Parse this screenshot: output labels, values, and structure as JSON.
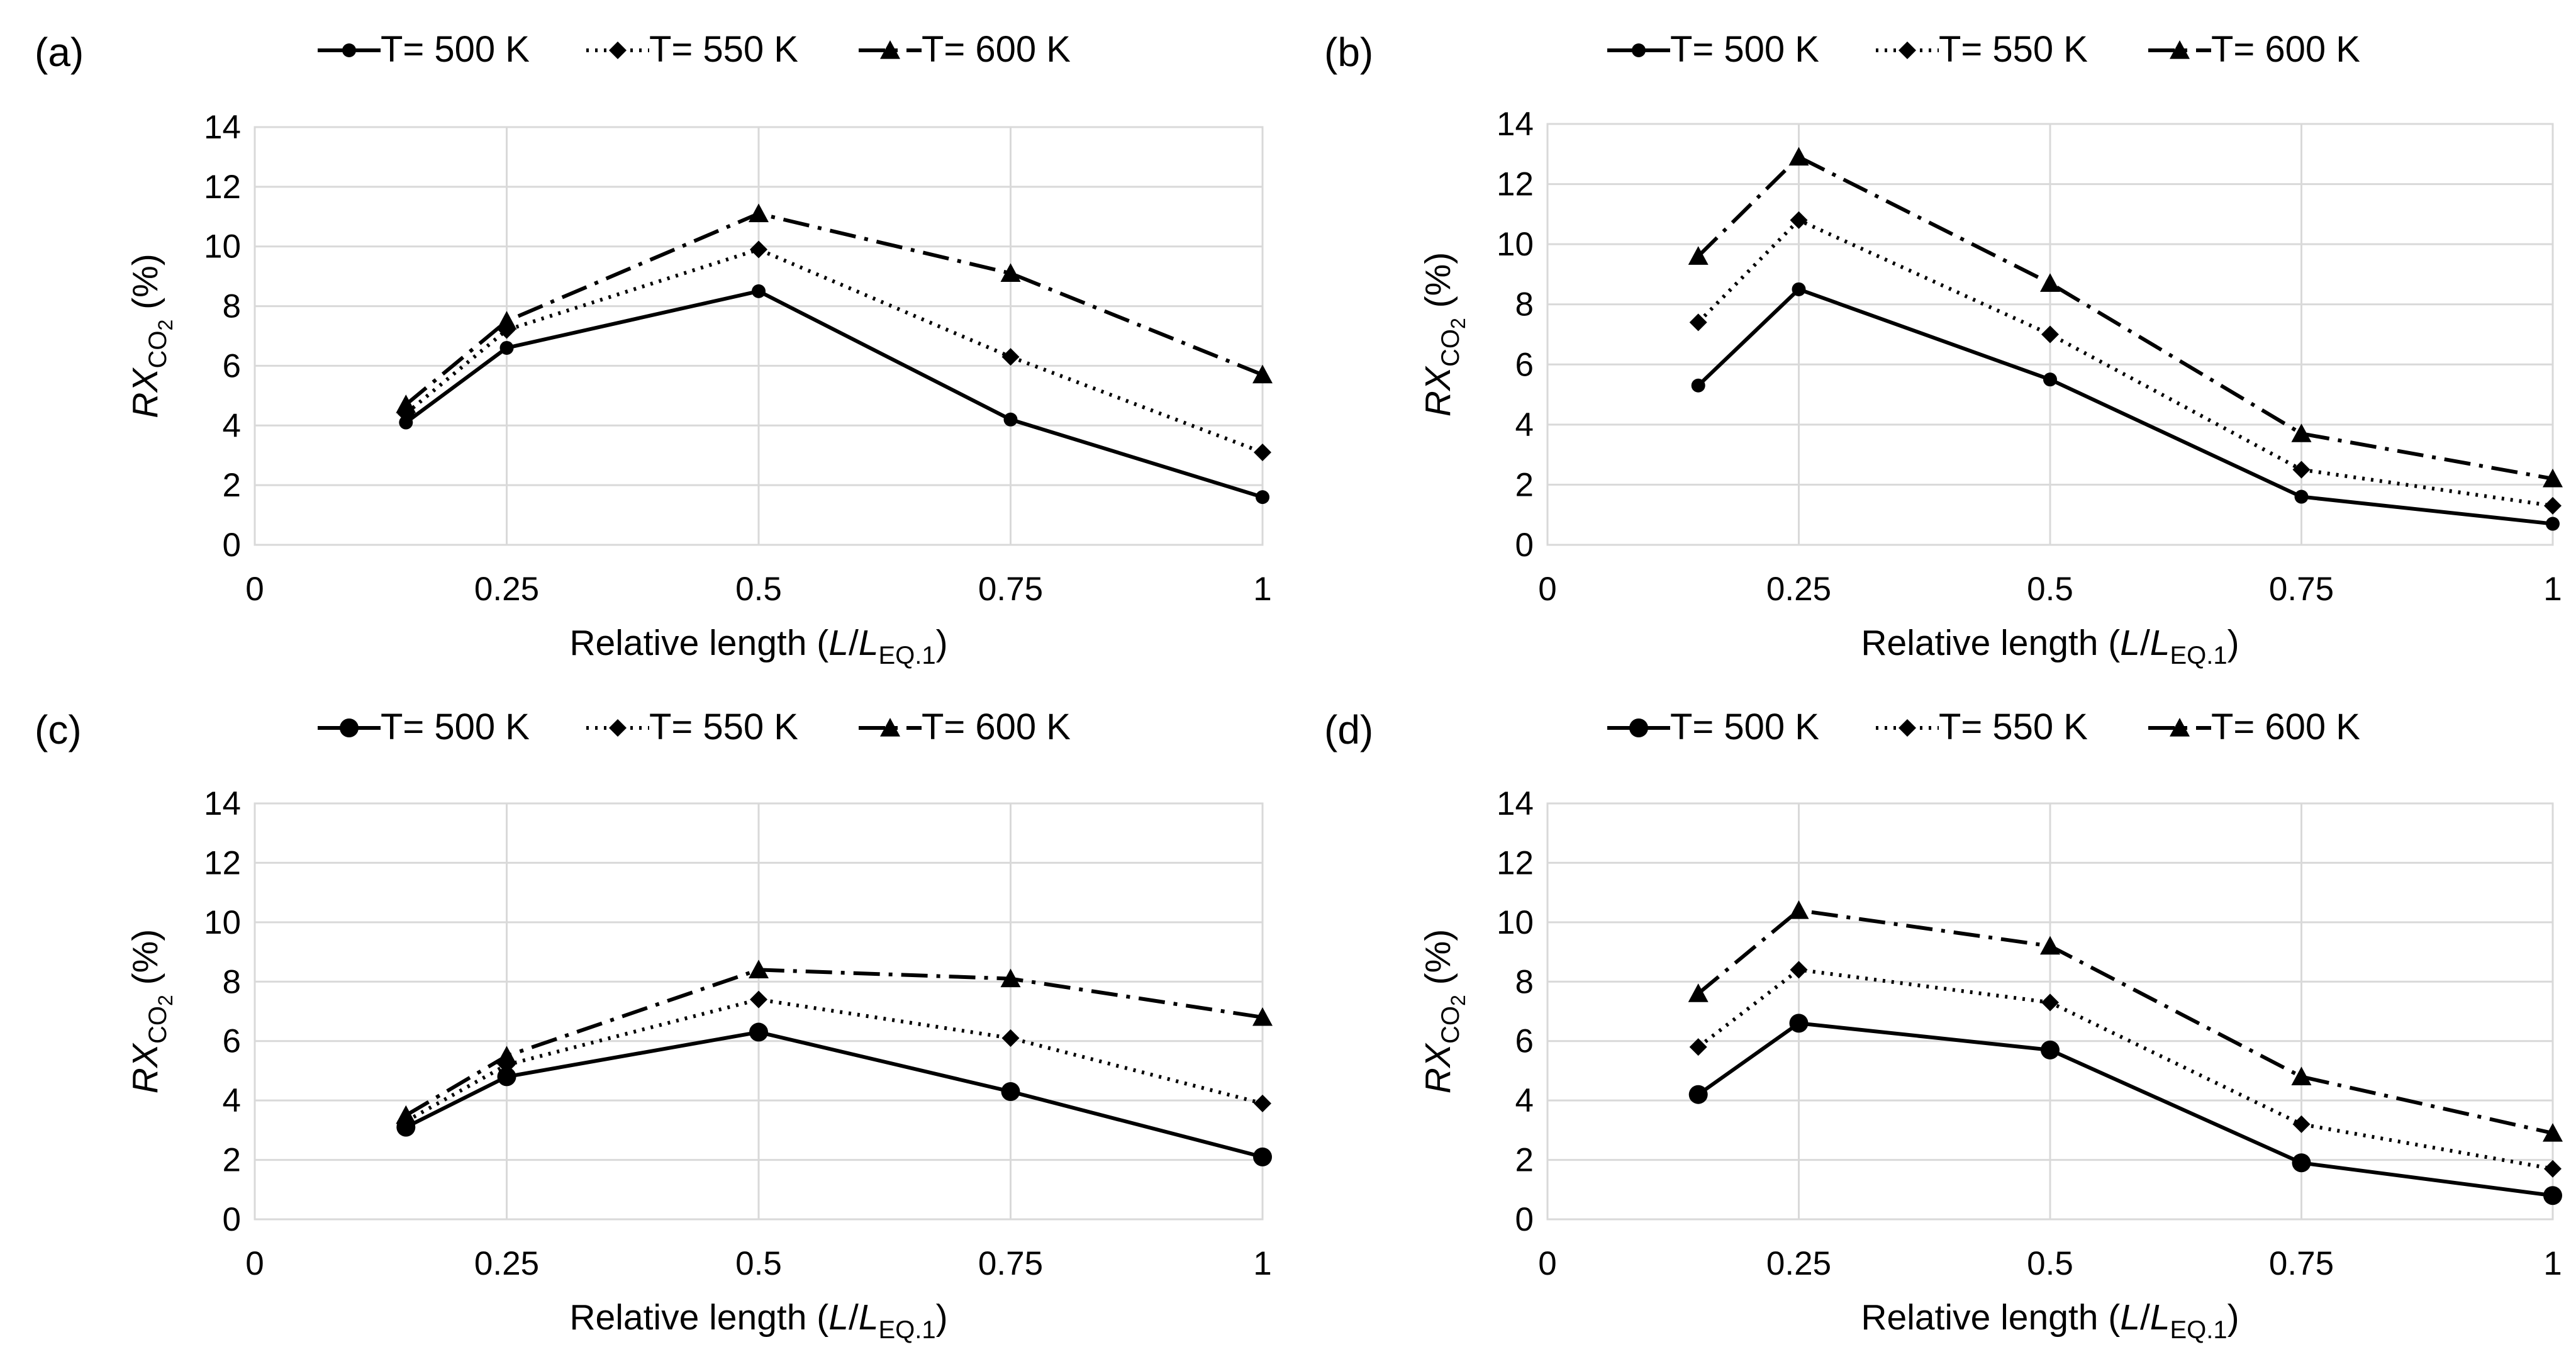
{
  "chart_data": [
    {
      "panel_label": "(a)",
      "type": "line",
      "x": [
        0.15,
        0.25,
        0.5,
        0.75,
        1
      ],
      "xlim": [
        0,
        1
      ],
      "ylim": [
        0,
        14
      ],
      "x_ticks": [
        "0",
        "0.25",
        "0.5",
        "0.75",
        "1"
      ],
      "y_ticks": [
        "0",
        "2",
        "4",
        "6",
        "8",
        "10",
        "12",
        "14"
      ],
      "xlabel": {
        "main": "Relative length (",
        "var1": "L",
        "slash": "/",
        "var2": "L",
        "sub": "EQ.1",
        "close": ")"
      },
      "ylabel": {
        "main": "RX",
        "sub": "CO",
        "sub2": "2",
        "unit": " (%)"
      },
      "series": [
        {
          "name": "T= 500 K",
          "style": "solid",
          "marker": "circle",
          "values": [
            4.1,
            6.6,
            8.5,
            4.2,
            1.6
          ]
        },
        {
          "name": "T= 550 K",
          "style": "dotted",
          "marker": "diamond",
          "values": [
            4.4,
            7.2,
            9.9,
            6.3,
            3.1
          ]
        },
        {
          "name": "T= 600 K",
          "style": "dashdot",
          "marker": "triangle",
          "values": [
            4.7,
            7.5,
            11.1,
            9.1,
            5.7
          ]
        }
      ],
      "grid": true,
      "legend_position": "top"
    },
    {
      "panel_label": "(b)",
      "type": "line",
      "x": [
        0.15,
        0.25,
        0.5,
        0.75,
        1
      ],
      "xlim": [
        0,
        1
      ],
      "ylim": [
        0,
        14
      ],
      "x_ticks": [
        "0",
        "0.25",
        "0.5",
        "0.75",
        "1"
      ],
      "y_ticks": [
        "0",
        "2",
        "4",
        "6",
        "8",
        "10",
        "12",
        "14"
      ],
      "xlabel": {
        "main": "Relative length (",
        "var1": "L",
        "slash": "/",
        "var2": "L",
        "sub": "EQ.1",
        "close": ")"
      },
      "ylabel": {
        "main": "RX",
        "sub": "CO",
        "sub2": "2",
        "unit": " (%)"
      },
      "series": [
        {
          "name": "T= 500 K",
          "style": "solid",
          "marker": "circle",
          "values": [
            5.3,
            8.5,
            5.5,
            1.6,
            0.7
          ]
        },
        {
          "name": "T= 550 K",
          "style": "dotted",
          "marker": "diamond",
          "values": [
            7.4,
            10.8,
            7.0,
            2.5,
            1.3
          ]
        },
        {
          "name": "T= 600 K",
          "style": "dashdot",
          "marker": "triangle",
          "values": [
            9.6,
            12.9,
            8.7,
            3.7,
            2.2
          ]
        }
      ],
      "grid": true,
      "legend_position": "top"
    },
    {
      "panel_label": "(c)",
      "type": "line",
      "x": [
        0.15,
        0.25,
        0.5,
        0.75,
        1
      ],
      "xlim": [
        0,
        1
      ],
      "ylim": [
        0,
        14
      ],
      "x_ticks": [
        "0",
        "0.25",
        "0.5",
        "0.75",
        "1"
      ],
      "y_ticks": [
        "0",
        "2",
        "4",
        "6",
        "8",
        "10",
        "12",
        "14"
      ],
      "xlabel": {
        "main": "Relative length (",
        "var1": "L",
        "slash": "/",
        "var2": "L",
        "sub": "EQ.1",
        "close": ")"
      },
      "ylabel": {
        "main": "RX",
        "sub": "CO",
        "sub2": "2",
        "unit": " (%)"
      },
      "series": [
        {
          "name": "T= 500 K",
          "style": "solid",
          "marker": "circle-large",
          "values": [
            3.1,
            4.8,
            6.3,
            4.3,
            2.1
          ]
        },
        {
          "name": "T= 550 K",
          "style": "dotted",
          "marker": "diamond",
          "values": [
            3.3,
            5.2,
            7.4,
            6.1,
            3.9
          ]
        },
        {
          "name": "T= 600 K",
          "style": "dashdot",
          "marker": "triangle",
          "values": [
            3.5,
            5.5,
            8.4,
            8.1,
            6.8
          ]
        }
      ],
      "grid": true,
      "legend_position": "top"
    },
    {
      "panel_label": "(d)",
      "type": "line",
      "x": [
        0.15,
        0.25,
        0.5,
        0.75,
        1
      ],
      "xlim": [
        0,
        1
      ],
      "ylim": [
        0,
        14
      ],
      "x_ticks": [
        "0",
        "0.25",
        "0.5",
        "0.75",
        "1"
      ],
      "y_ticks": [
        "0",
        "2",
        "4",
        "6",
        "8",
        "10",
        "12",
        "14"
      ],
      "xlabel": {
        "main": "Relative length (",
        "var1": "L",
        "slash": "/",
        "var2": "L",
        "sub": "EQ.1",
        "close": ")"
      },
      "ylabel": {
        "main": "RX",
        "sub": "CO",
        "sub2": "2",
        "unit": " (%)"
      },
      "series": [
        {
          "name": "T= 500 K",
          "style": "solid",
          "marker": "circle-large",
          "values": [
            4.2,
            6.6,
            5.7,
            1.9,
            0.8
          ]
        },
        {
          "name": "T= 550 K",
          "style": "dotted",
          "marker": "diamond",
          "values": [
            5.8,
            8.4,
            7.3,
            3.2,
            1.7
          ]
        },
        {
          "name": "T= 600 K",
          "style": "dashdot",
          "marker": "triangle",
          "values": [
            7.6,
            10.4,
            9.2,
            4.8,
            2.9
          ]
        }
      ],
      "grid": true,
      "legend_position": "top"
    }
  ],
  "colors": {
    "series": "#000000",
    "grid": "#d9d9d9",
    "background": "#ffffff"
  }
}
